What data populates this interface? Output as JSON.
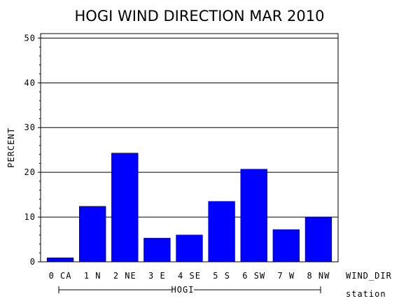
{
  "chart_data": {
    "type": "bar",
    "title": "HOGI WIND DIRECTION MAR 2010",
    "ylabel": "PERCENT",
    "xlabel": "WIND_DIR",
    "group_label": "HOGI",
    "group_axis_label": "station",
    "categories": [
      "0 CA",
      "1 N",
      "2 NE",
      "3 E",
      "4 SE",
      "5 S",
      "6 SW",
      "7 W",
      "8 NW"
    ],
    "values": [
      0.9,
      12.4,
      24.3,
      5.3,
      6.0,
      13.5,
      20.7,
      7.2,
      10.0
    ],
    "ylim": [
      0,
      51
    ],
    "yticks": [
      "0",
      "10",
      "20",
      "30",
      "40",
      "50"
    ],
    "grid": true,
    "bar_color": "#0000ff"
  }
}
